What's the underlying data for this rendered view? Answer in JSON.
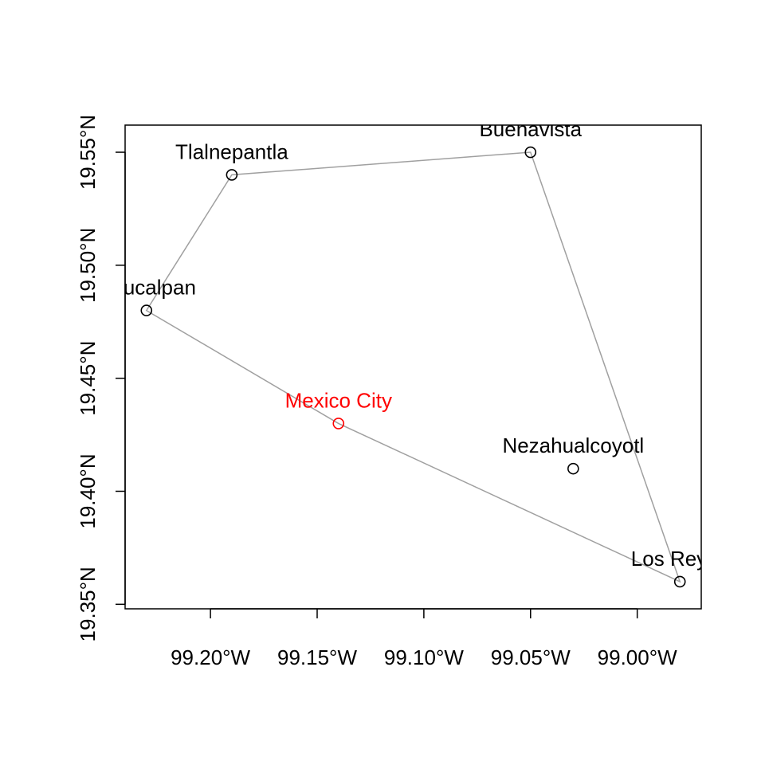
{
  "chart_data": {
    "type": "scatter",
    "title": "",
    "xlabel": "",
    "ylabel": "",
    "xlim": [
      -99.24,
      -98.97
    ],
    "ylim": [
      19.348,
      19.562
    ],
    "grid": false,
    "x_ticks": [
      {
        "value": -99.2,
        "label": "99.20°W"
      },
      {
        "value": -99.15,
        "label": "99.15°W"
      },
      {
        "value": -99.1,
        "label": "99.10°W"
      },
      {
        "value": -99.05,
        "label": "99.05°W"
      },
      {
        "value": -99.0,
        "label": "99.00°W"
      }
    ],
    "y_ticks": [
      {
        "value": 19.35,
        "label": "19.35°N"
      },
      {
        "value": 19.4,
        "label": "19.40°N"
      },
      {
        "value": 19.45,
        "label": "19.45°N"
      },
      {
        "value": 19.5,
        "label": "19.50°N"
      },
      {
        "value": 19.55,
        "label": "19.55°N"
      }
    ],
    "points": [
      {
        "name": "Naucalpan",
        "lon": -99.23,
        "lat": 19.48,
        "color": "#000000"
      },
      {
        "name": "Tlalnepantla",
        "lon": -99.19,
        "lat": 19.54,
        "color": "#000000"
      },
      {
        "name": "Buenavista",
        "lon": -99.05,
        "lat": 19.55,
        "color": "#000000"
      },
      {
        "name": "Los Reyes",
        "lon": -98.98,
        "lat": 19.36,
        "color": "#000000"
      },
      {
        "name": "Nezahualcoyotl",
        "lon": -99.03,
        "lat": 19.41,
        "color": "#000000"
      },
      {
        "name": "Mexico City",
        "lon": -99.14,
        "lat": 19.43,
        "color": "#ff0000"
      }
    ],
    "hull_order": [
      "Naucalpan",
      "Tlalnepantla",
      "Buenavista",
      "Los Reyes",
      "Mexico City"
    ],
    "hull_color": "#a0a0a0"
  }
}
